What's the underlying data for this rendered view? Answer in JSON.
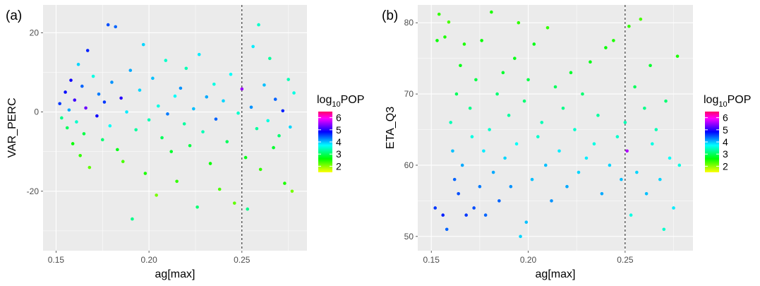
{
  "chart_data": [
    {
      "panel_label": "(a)",
      "type": "scatter",
      "xlabel": "ag[max]",
      "ylabel": "VAR_PERC",
      "xlim": [
        0.143,
        0.285
      ],
      "ylim": [
        -35,
        27
      ],
      "xticks": [
        0.15,
        0.2,
        0.25
      ],
      "xtick_labels": [
        "0.15",
        "0.20",
        "0.25"
      ],
      "yticks": [
        -20,
        0,
        20
      ],
      "ytick_labels": [
        "-20",
        "0",
        "20"
      ],
      "vline_x": 0.25,
      "grid": true,
      "legend": {
        "title_base": "log",
        "title_sub": "10",
        "title_rest": "POP",
        "labels": [
          "6",
          "5",
          "4",
          "3",
          "2"
        ],
        "placement": "right"
      },
      "colorscale": [
        "#ff0066",
        "#ff00ff",
        "#7f00ff",
        "#0000ff",
        "#0080ff",
        "#00ffff",
        "#00ff80",
        "#00ff00",
        "#80ff00",
        "#ffff00"
      ],
      "color_range": [
        1.5,
        6.5
      ],
      "points": [
        [
          0.152,
          2.1,
          4.6
        ],
        [
          0.153,
          -1.5,
          3.2
        ],
        [
          0.155,
          5.0,
          4.8
        ],
        [
          0.156,
          -4.0,
          3.0
        ],
        [
          0.157,
          0.5,
          4.1
        ],
        [
          0.158,
          8.0,
          4.9
        ],
        [
          0.159,
          -8.0,
          2.6
        ],
        [
          0.16,
          3.0,
          5.1
        ],
        [
          0.161,
          -2.5,
          3.5
        ],
        [
          0.162,
          12.0,
          3.9
        ],
        [
          0.163,
          -11.0,
          2.4
        ],
        [
          0.164,
          6.5,
          4.4
        ],
        [
          0.165,
          -5.5,
          2.9
        ],
        [
          0.166,
          1.0,
          5.3
        ],
        [
          0.167,
          15.5,
          4.7
        ],
        [
          0.168,
          -14.0,
          2.2
        ],
        [
          0.17,
          9.0,
          3.6
        ],
        [
          0.172,
          -1.0,
          4.9
        ],
        [
          0.173,
          4.5,
          4.3
        ],
        [
          0.175,
          -7.0,
          3.1
        ],
        [
          0.176,
          2.5,
          4.6
        ],
        [
          0.178,
          22.0,
          4.5
        ],
        [
          0.179,
          -3.5,
          3.7
        ],
        [
          0.18,
          7.5,
          4.2
        ],
        [
          0.182,
          21.5,
          4.4
        ],
        [
          0.183,
          -9.5,
          2.7
        ],
        [
          0.185,
          3.5,
          5.0
        ],
        [
          0.186,
          -12.5,
          2.3
        ],
        [
          0.188,
          0.0,
          3.8
        ],
        [
          0.19,
          10.5,
          4.1
        ],
        [
          0.191,
          -27.0,
          3.2
        ],
        [
          0.193,
          -4.5,
          3.3
        ],
        [
          0.195,
          5.5,
          3.9
        ],
        [
          0.197,
          17.0,
          3.9
        ],
        [
          0.198,
          -15.5,
          2.5
        ],
        [
          0.2,
          -2.0,
          3.4
        ],
        [
          0.202,
          8.5,
          4.0
        ],
        [
          0.204,
          -21.0,
          2.1
        ],
        [
          0.205,
          1.5,
          3.6
        ],
        [
          0.207,
          -6.5,
          3.0
        ],
        [
          0.209,
          13.0,
          3.5
        ],
        [
          0.21,
          -0.5,
          4.3
        ],
        [
          0.212,
          -10.0,
          2.8
        ],
        [
          0.214,
          4.0,
          3.7
        ],
        [
          0.215,
          -17.5,
          2.4
        ],
        [
          0.217,
          6.0,
          4.2
        ],
        [
          0.219,
          -3.0,
          3.3
        ],
        [
          0.22,
          11.0,
          3.4
        ],
        [
          0.222,
          -8.5,
          2.9
        ],
        [
          0.224,
          0.8,
          4.0
        ],
        [
          0.226,
          -24.0,
          3.1
        ],
        [
          0.227,
          14.5,
          3.8
        ],
        [
          0.229,
          -5.0,
          3.4
        ],
        [
          0.231,
          3.8,
          4.1
        ],
        [
          0.233,
          -13.0,
          2.6
        ],
        [
          0.235,
          7.0,
          3.6
        ],
        [
          0.236,
          -1.8,
          4.4
        ],
        [
          0.238,
          -19.5,
          2.3
        ],
        [
          0.24,
          2.8,
          3.9
        ],
        [
          0.242,
          -7.5,
          3.0
        ],
        [
          0.244,
          9.5,
          3.7
        ],
        [
          0.246,
          -23.0,
          2.2
        ],
        [
          0.248,
          -0.3,
          3.5
        ],
        [
          0.25,
          5.8,
          5.5
        ],
        [
          0.252,
          -11.5,
          2.7
        ],
        [
          0.253,
          -24.5,
          3.2
        ],
        [
          0.255,
          1.2,
          4.2
        ],
        [
          0.256,
          16.5,
          3.8
        ],
        [
          0.258,
          -4.2,
          3.3
        ],
        [
          0.259,
          22.0,
          3.5
        ],
        [
          0.26,
          -14.5,
          2.4
        ],
        [
          0.262,
          6.8,
          4.0
        ],
        [
          0.264,
          -2.2,
          3.6
        ],
        [
          0.265,
          13.5,
          3.3
        ],
        [
          0.267,
          -9.0,
          2.8
        ],
        [
          0.268,
          3.2,
          4.4
        ],
        [
          0.27,
          -6.0,
          3.1
        ],
        [
          0.272,
          0.3,
          4.7
        ],
        [
          0.273,
          -18.0,
          2.5
        ],
        [
          0.275,
          8.2,
          3.4
        ],
        [
          0.276,
          -3.8,
          3.9
        ],
        [
          0.277,
          -20.0,
          2.1
        ],
        [
          0.278,
          4.8,
          3.6
        ]
      ]
    },
    {
      "panel_label": "(b)",
      "type": "scatter",
      "xlabel": "ag[max]",
      "ylabel": "ETA_Q3",
      "xlim": [
        0.143,
        0.285
      ],
      "ylim": [
        48,
        82.5
      ],
      "xticks": [
        0.15,
        0.2,
        0.25
      ],
      "xtick_labels": [
        "0.15",
        "0.20",
        "0.25"
      ],
      "yticks": [
        50,
        60,
        70,
        80
      ],
      "ytick_labels": [
        "50",
        "60",
        "70",
        "80"
      ],
      "vline_x": 0.25,
      "grid": true,
      "legend": {
        "title_base": "log",
        "title_sub": "10",
        "title_rest": "POP",
        "labels": [
          "6",
          "5",
          "4",
          "3",
          "2"
        ],
        "placement": "right"
      },
      "colorscale": [
        "#ff0066",
        "#ff00ff",
        "#7f00ff",
        "#0000ff",
        "#0080ff",
        "#00ffff",
        "#00ff80",
        "#00ff00",
        "#80ff00",
        "#ffff00"
      ],
      "color_range": [
        1.5,
        6.5
      ],
      "points": [
        [
          0.152,
          54,
          4.6
        ],
        [
          0.153,
          77.5,
          2.6
        ],
        [
          0.154,
          81.2,
          2.4
        ],
        [
          0.156,
          53,
          4.7
        ],
        [
          0.157,
          78,
          2.5
        ],
        [
          0.158,
          51,
          4.4
        ],
        [
          0.159,
          80.1,
          2.3
        ],
        [
          0.16,
          66,
          3.4
        ],
        [
          0.161,
          62,
          4.0
        ],
        [
          0.162,
          58,
          4.4
        ],
        [
          0.163,
          70,
          3.0
        ],
        [
          0.164,
          56,
          4.5
        ],
        [
          0.165,
          74,
          2.7
        ],
        [
          0.166,
          60,
          4.1
        ],
        [
          0.167,
          77,
          2.5
        ],
        [
          0.168,
          53,
          4.6
        ],
        [
          0.17,
          68,
          3.2
        ],
        [
          0.171,
          64,
          3.6
        ],
        [
          0.172,
          54,
          4.5
        ],
        [
          0.173,
          72,
          2.9
        ],
        [
          0.175,
          57,
          4.3
        ],
        [
          0.176,
          77.5,
          2.6
        ],
        [
          0.177,
          62,
          3.8
        ],
        [
          0.178,
          53,
          4.4
        ],
        [
          0.18,
          65,
          3.5
        ],
        [
          0.181,
          81.5,
          2.5
        ],
        [
          0.182,
          59,
          4.1
        ],
        [
          0.184,
          70,
          3.1
        ],
        [
          0.185,
          55,
          4.4
        ],
        [
          0.187,
          73,
          2.8
        ],
        [
          0.188,
          61,
          3.9
        ],
        [
          0.19,
          67,
          3.3
        ],
        [
          0.191,
          57,
          4.2
        ],
        [
          0.193,
          75,
          2.7
        ],
        [
          0.194,
          63,
          3.7
        ],
        [
          0.195,
          80,
          2.4
        ],
        [
          0.196,
          50,
          3.9
        ],
        [
          0.198,
          69,
          3.1
        ],
        [
          0.199,
          52,
          4.0
        ],
        [
          0.2,
          72,
          2.9
        ],
        [
          0.202,
          58,
          4.0
        ],
        [
          0.203,
          77,
          2.7
        ],
        [
          0.205,
          64,
          3.5
        ],
        [
          0.207,
          66,
          3.4
        ],
        [
          0.209,
          60,
          4.0
        ],
        [
          0.21,
          79.3,
          2.4
        ],
        [
          0.212,
          55,
          4.2
        ],
        [
          0.214,
          71,
          3.0
        ],
        [
          0.216,
          62,
          3.8
        ],
        [
          0.218,
          68,
          3.2
        ],
        [
          0.22,
          57,
          4.1
        ],
        [
          0.222,
          73,
          2.8
        ],
        [
          0.224,
          65,
          3.5
        ],
        [
          0.226,
          59,
          3.9
        ],
        [
          0.228,
          70,
          3.1
        ],
        [
          0.23,
          61,
          3.8
        ],
        [
          0.232,
          74.5,
          2.7
        ],
        [
          0.234,
          63,
          3.6
        ],
        [
          0.236,
          67,
          3.3
        ],
        [
          0.238,
          56,
          4.1
        ],
        [
          0.24,
          76.5,
          2.6
        ],
        [
          0.242,
          60,
          3.9
        ],
        [
          0.244,
          77.5,
          2.5
        ],
        [
          0.246,
          64,
          3.5
        ],
        [
          0.248,
          58,
          4.0
        ],
        [
          0.25,
          66,
          3.4
        ],
        [
          0.251,
          62,
          5.6
        ],
        [
          0.252,
          79.5,
          2.4
        ],
        [
          0.253,
          53,
          3.6
        ],
        [
          0.255,
          71,
          3.0
        ],
        [
          0.256,
          59,
          3.9
        ],
        [
          0.258,
          80.5,
          2.3
        ],
        [
          0.26,
          68,
          3.2
        ],
        [
          0.261,
          56,
          4.0
        ],
        [
          0.263,
          74,
          2.8
        ],
        [
          0.264,
          63,
          3.6
        ],
        [
          0.266,
          65,
          3.4
        ],
        [
          0.268,
          58,
          3.9
        ],
        [
          0.27,
          51,
          3.5
        ],
        [
          0.271,
          69,
          3.1
        ],
        [
          0.273,
          61,
          3.7
        ],
        [
          0.275,
          54,
          3.8
        ],
        [
          0.277,
          75.3,
          2.5
        ],
        [
          0.278,
          60,
          3.6
        ]
      ]
    }
  ]
}
